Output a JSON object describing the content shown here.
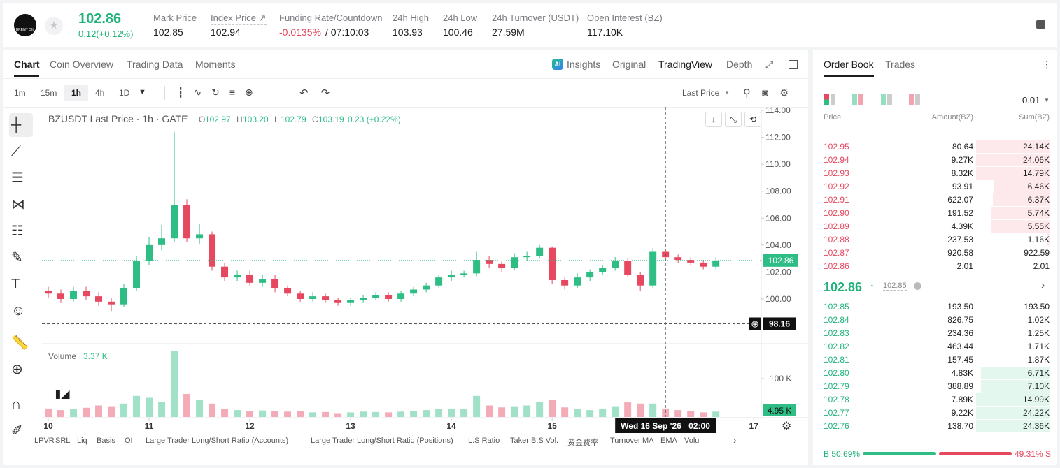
{
  "header": {
    "logo": "BRENT OIL",
    "price": "102.86",
    "change": "0.12(+0.12%)",
    "stats": [
      {
        "label": "Mark Price",
        "value": "102.85"
      },
      {
        "label": "Index Price ↗",
        "value": "102.94"
      },
      {
        "label": "Funding Rate/Countdown",
        "value": "-0.0135%",
        "extra": "/ 07:10:03"
      },
      {
        "label": "24h High",
        "value": "103.93"
      },
      {
        "label": "24h Low",
        "value": "100.46"
      },
      {
        "label": "24h Turnover (USDT)",
        "value": "27.59M"
      },
      {
        "label": "Open Interest (BZ)",
        "value": "117.10K"
      }
    ]
  },
  "tabs": [
    "Chart",
    "Coin Overview",
    "Trading Data",
    "Moments"
  ],
  "view_tabs": [
    "Insights",
    "Original",
    "TradingView",
    "Depth"
  ],
  "intervals": [
    "1m",
    "15m",
    "1h",
    "4h",
    "1D"
  ],
  "price_type": "Last Price",
  "indicators": [
    "LPVR",
    "SRL",
    "Liq",
    "Basis",
    "OI",
    "Large Trader Long/Short Ratio (Accounts)",
    "Large Trader Long/Short Ratio (Positions)",
    "L.S Ratio",
    "Taker B.S Vol.",
    "资金费率",
    "Turnover",
    "MA",
    "EMA",
    "Volu"
  ],
  "chart_data": {
    "type": "candlestick",
    "title": "BZUSDT Last Price · 1h · GATE",
    "legend": [
      {
        "label": "O",
        "value": "102.97"
      },
      {
        "label": "H",
        "value": "103.20"
      },
      {
        "label": "L",
        "value": "102.79"
      },
      {
        "label": "C",
        "value": "103.19"
      }
    ],
    "legend_change": "0.23 (+0.22%)",
    "up_color": "#2ebd85",
    "down_color": "#e5485f",
    "open": [
      100.6,
      100.4,
      100.0,
      100.6,
      100.2,
      99.8,
      99.6,
      100.8,
      102.8,
      104.0,
      104.5,
      107.0,
      104.5,
      104.8,
      102.4,
      101.6,
      101.8,
      101.2,
      101.5,
      100.8,
      100.4,
      100.0,
      100.2,
      99.9,
      99.7,
      99.9,
      100.1,
      100.3,
      100.0,
      100.4,
      100.7,
      101.0,
      101.6,
      101.8,
      101.9,
      102.9,
      102.6,
      102.3,
      103.1,
      103.2,
      103.8,
      101.4,
      101.0,
      101.6,
      102.0,
      102.3,
      102.8,
      101.8,
      101.0,
      103.5,
      103.1,
      102.9,
      102.7,
      102.4
    ],
    "high": [
      100.9,
      100.7,
      100.9,
      100.9,
      100.5,
      100.1,
      101.1,
      103.2,
      104.6,
      105.5,
      112.4,
      107.4,
      105.6,
      105.0,
      102.7,
      102.1,
      102.1,
      101.8,
      101.8,
      101.0,
      100.6,
      100.5,
      100.4,
      100.1,
      100.1,
      100.3,
      100.5,
      100.5,
      100.6,
      100.9,
      101.2,
      101.8,
      102.1,
      102.1,
      103.5,
      103.2,
      102.8,
      103.4,
      103.5,
      104.0,
      103.9,
      101.6,
      101.9,
      102.2,
      102.5,
      103.1,
      103.0,
      102.0,
      103.8,
      103.7,
      103.3,
      103.1,
      102.9,
      103.1
    ],
    "low": [
      100.1,
      99.7,
      99.8,
      99.9,
      99.5,
      99.1,
      99.4,
      100.6,
      102.5,
      103.6,
      104.2,
      104.2,
      104.1,
      102.1,
      101.3,
      101.3,
      101.0,
      100.9,
      100.5,
      100.2,
      99.8,
      99.8,
      99.7,
      99.5,
      99.5,
      99.7,
      99.9,
      99.8,
      99.8,
      100.2,
      100.5,
      100.8,
      101.3,
      101.6,
      101.7,
      102.3,
      102.0,
      102.1,
      102.8,
      103.0,
      101.1,
      100.7,
      100.8,
      101.3,
      101.8,
      102.1,
      101.6,
      100.6,
      100.8,
      102.8,
      102.7,
      102.5,
      102.2,
      102.2
    ],
    "close": [
      100.4,
      100.0,
      100.6,
      100.2,
      99.8,
      99.6,
      100.8,
      102.8,
      104.0,
      104.5,
      107.0,
      104.5,
      104.8,
      102.4,
      101.6,
      101.8,
      101.2,
      101.5,
      100.8,
      100.4,
      100.0,
      100.2,
      99.9,
      99.7,
      99.9,
      100.1,
      100.3,
      100.0,
      100.4,
      100.7,
      101.0,
      101.6,
      101.8,
      101.9,
      102.9,
      102.6,
      102.3,
      103.1,
      103.2,
      103.8,
      101.4,
      101.0,
      101.6,
      102.0,
      102.3,
      102.8,
      101.8,
      101.0,
      103.5,
      103.1,
      102.9,
      102.7,
      102.4,
      102.86
    ],
    "xlim": [
      -0.5,
      56.6
    ],
    "xticks": [
      {
        "value": 0,
        "label": "10"
      },
      {
        "value": 8,
        "label": "11"
      },
      {
        "value": 16,
        "label": "12"
      },
      {
        "value": 24,
        "label": "13"
      },
      {
        "value": 32,
        "label": "14"
      },
      {
        "value": 40,
        "label": "15"
      },
      {
        "value": 56,
        "label": "17"
      }
    ],
    "ylim": [
      96.68,
      114.26
    ],
    "yticks": [
      {
        "value": 100,
        "label": "100.00"
      },
      {
        "value": 102,
        "label": "102.00"
      },
      {
        "value": 104,
        "label": "104.00"
      },
      {
        "value": 106,
        "label": "106.00"
      },
      {
        "value": 108,
        "label": "108.00"
      },
      {
        "value": 110,
        "label": "110.00"
      },
      {
        "value": 112,
        "label": "112.00"
      },
      {
        "value": 114,
        "label": "114.00"
      }
    ],
    "last_price": 102.86,
    "crosshair_price": 98.16,
    "crosshair_index": 49.0,
    "crosshair_date": "Wed 16 Sep '26",
    "crosshair_time": "02:00",
    "volume": {
      "title": "Volume",
      "last": "3.37 K",
      "current": "4.95 K",
      "values": [
        22,
        18,
        20,
        24,
        30,
        28,
        35,
        55,
        50,
        40,
        171,
        60,
        45,
        35,
        20,
        18,
        15,
        17,
        16,
        14,
        15,
        12,
        13,
        10,
        12,
        14,
        13,
        12,
        14,
        15,
        18,
        20,
        22,
        20,
        55,
        30,
        25,
        28,
        30,
        40,
        45,
        25,
        20,
        18,
        22,
        28,
        38,
        35,
        35,
        22,
        18,
        15,
        12,
        14
      ],
      "ylim": [
        0,
        180
      ],
      "yticks": [
        {
          "value": 100,
          "label": "100 K"
        }
      ]
    }
  },
  "order_book": {
    "tabs": [
      "Order Book",
      "Trades"
    ],
    "precision": "0.01",
    "headers": [
      "Price",
      "Amount(BZ)",
      "Sum(BZ)"
    ],
    "asks": [
      [
        "102.95",
        "80.64",
        "24.14K"
      ],
      [
        "102.94",
        "9.27K",
        "24.06K"
      ],
      [
        "102.93",
        "8.32K",
        "14.79K"
      ],
      [
        "102.92",
        "93.91",
        "6.46K"
      ],
      [
        "102.91",
        "622.07",
        "6.37K"
      ],
      [
        "102.90",
        "191.52",
        "5.74K"
      ],
      [
        "102.89",
        "4.39K",
        "5.55K"
      ],
      [
        "102.88",
        "237.53",
        "1.16K"
      ],
      [
        "102.87",
        "920.58",
        "922.59"
      ],
      [
        "102.86",
        "2.01",
        "2.01"
      ]
    ],
    "mid_price": "102.86",
    "mark_price": "102.85",
    "bids": [
      [
        "102.85",
        "193.50",
        "193.50"
      ],
      [
        "102.84",
        "826.75",
        "1.02K"
      ],
      [
        "102.83",
        "234.36",
        "1.25K"
      ],
      [
        "102.82",
        "463.44",
        "1.71K"
      ],
      [
        "102.81",
        "157.45",
        "1.87K"
      ],
      [
        "102.80",
        "4.83K",
        "6.71K"
      ],
      [
        "102.79",
        "388.89",
        "7.10K"
      ],
      [
        "102.78",
        "7.89K",
        "14.99K"
      ],
      [
        "102.77",
        "9.22K",
        "24.22K"
      ],
      [
        "102.76",
        "138.70",
        "24.36K"
      ]
    ],
    "buy_ratio": "B 50.69%",
    "sell_ratio": "49.31% S"
  }
}
